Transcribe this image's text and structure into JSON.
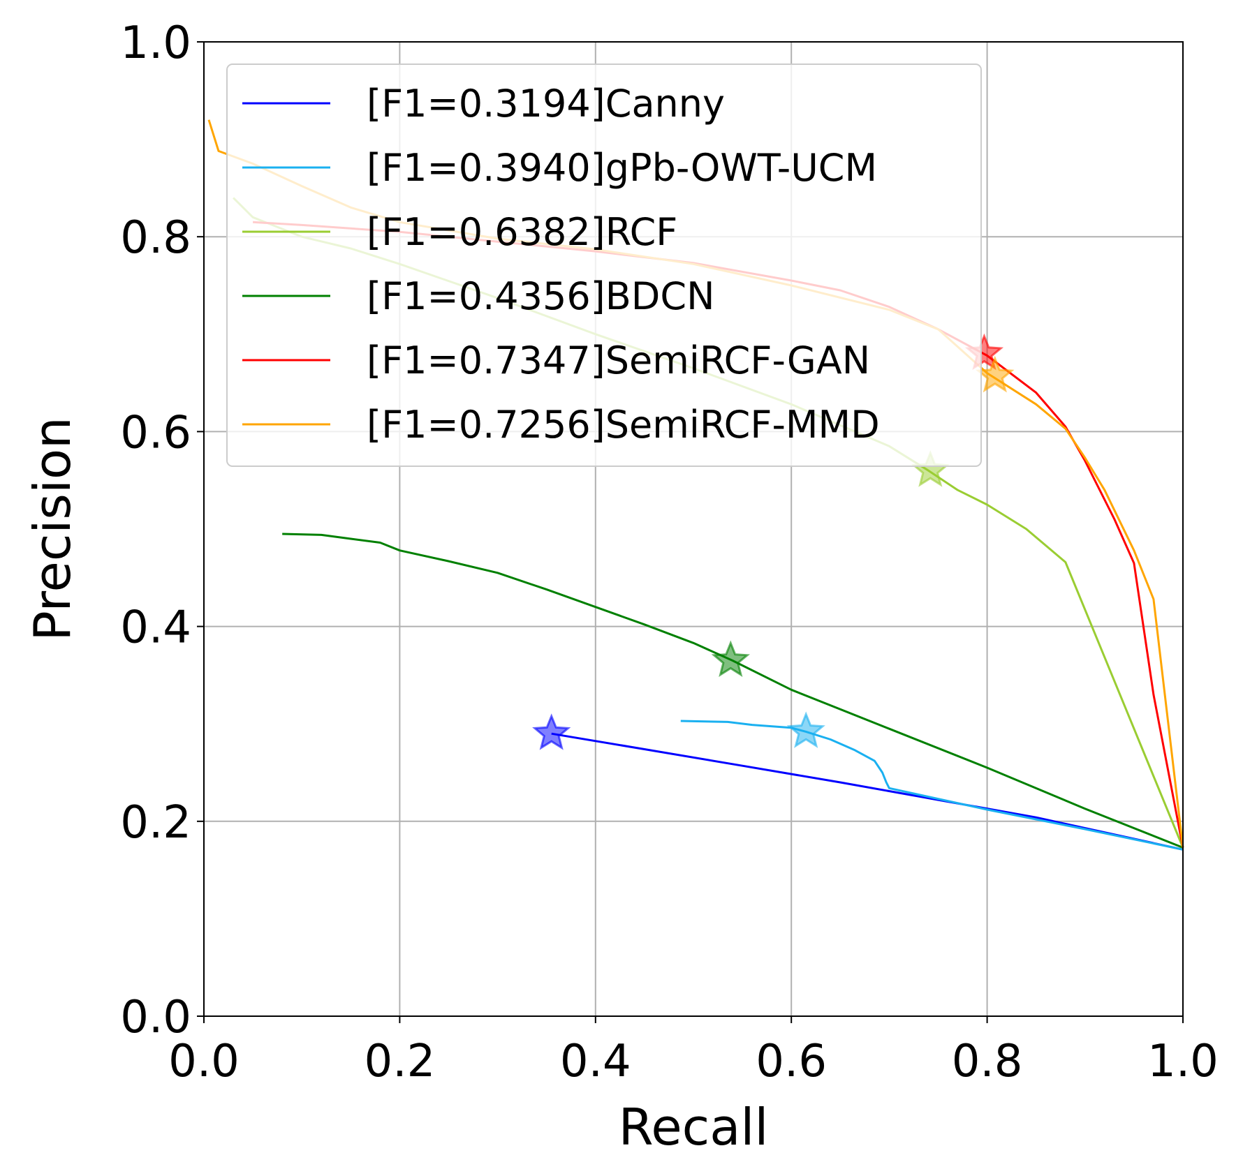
{
  "chart_data": {
    "type": "line",
    "title": "",
    "xlabel": "Recall",
    "ylabel": "Precision",
    "xlim": [
      0.0,
      1.0
    ],
    "ylim": [
      0.0,
      1.0
    ],
    "x_ticks": [
      "0.0",
      "0.2",
      "0.4",
      "0.6",
      "0.8",
      "1.0"
    ],
    "y_ticks": [
      "0.0",
      "0.2",
      "0.4",
      "0.6",
      "0.8",
      "1.0"
    ],
    "grid": true,
    "legend_position": "top-left",
    "series": [
      {
        "name": "[F1=0.3194]Canny",
        "color": "#0000ff",
        "x": [
          0.355,
          0.45,
          0.55,
          0.65,
          0.75,
          0.85,
          1.0
        ],
        "y": [
          0.29,
          0.274,
          0.257,
          0.24,
          0.222,
          0.204,
          0.171
        ],
        "best": {
          "x": 0.355,
          "y": 0.29
        }
      },
      {
        "name": "[F1=0.3940]gPb-OWT-UCM",
        "color": "#1ab0f0",
        "x": [
          0.487,
          0.535,
          0.56,
          0.6,
          0.615,
          0.64,
          0.665,
          0.685,
          0.693,
          0.697,
          0.7,
          0.8,
          0.9,
          1.0
        ],
        "y": [
          0.303,
          0.302,
          0.299,
          0.296,
          0.292,
          0.284,
          0.273,
          0.262,
          0.25,
          0.24,
          0.234,
          0.212,
          0.192,
          0.171
        ],
        "best": {
          "x": 0.615,
          "y": 0.292
        }
      },
      {
        "name": "[F1=0.6382]RCF",
        "color": "#9acd32",
        "x": [
          0.03,
          0.05,
          0.1,
          0.15,
          0.2,
          0.3,
          0.4,
          0.5,
          0.6,
          0.7,
          0.74,
          0.77,
          0.8,
          0.84,
          0.88,
          1.0
        ],
        "y": [
          0.84,
          0.82,
          0.8,
          0.788,
          0.772,
          0.737,
          0.7,
          0.665,
          0.628,
          0.585,
          0.56,
          0.54,
          0.525,
          0.5,
          0.466,
          0.173
        ],
        "best": {
          "x": 0.742,
          "y": 0.56
        }
      },
      {
        "name": "[F1=0.4356]BDCN",
        "color": "#008000",
        "x": [
          0.08,
          0.12,
          0.15,
          0.18,
          0.2,
          0.25,
          0.3,
          0.35,
          0.4,
          0.45,
          0.5,
          0.54,
          0.6,
          0.7,
          0.8,
          0.9,
          1.0
        ],
        "y": [
          0.495,
          0.494,
          0.49,
          0.486,
          0.478,
          0.467,
          0.455,
          0.438,
          0.42,
          0.402,
          0.383,
          0.365,
          0.335,
          0.295,
          0.255,
          0.213,
          0.173
        ],
        "best": {
          "x": 0.538,
          "y": 0.365
        }
      },
      {
        "name": "[F1=0.7347]SemiRCF-GAN",
        "color": "#ff0000",
        "x": [
          0.05,
          0.1,
          0.2,
          0.3,
          0.4,
          0.5,
          0.6,
          0.65,
          0.7,
          0.75,
          0.8,
          0.85,
          0.88,
          0.9,
          0.93,
          0.95,
          0.97,
          1.0
        ],
        "y": [
          0.815,
          0.812,
          0.805,
          0.795,
          0.785,
          0.773,
          0.755,
          0.745,
          0.728,
          0.705,
          0.678,
          0.64,
          0.605,
          0.57,
          0.51,
          0.465,
          0.33,
          0.173
        ],
        "best": {
          "x": 0.797,
          "y": 0.68
        }
      },
      {
        "name": "[F1=0.7256]SemiRCF-MMD",
        "color": "#ffa500",
        "x": [
          0.005,
          0.015,
          0.05,
          0.1,
          0.15,
          0.2,
          0.3,
          0.4,
          0.5,
          0.6,
          0.7,
          0.75,
          0.8,
          0.85,
          0.88,
          0.9,
          0.92,
          0.95,
          0.97,
          1.0
        ],
        "y": [
          0.92,
          0.888,
          0.875,
          0.852,
          0.83,
          0.815,
          0.798,
          0.787,
          0.772,
          0.75,
          0.725,
          0.705,
          0.66,
          0.628,
          0.603,
          0.573,
          0.54,
          0.478,
          0.428,
          0.173
        ],
        "best": {
          "x": 0.808,
          "y": 0.657
        }
      }
    ]
  }
}
